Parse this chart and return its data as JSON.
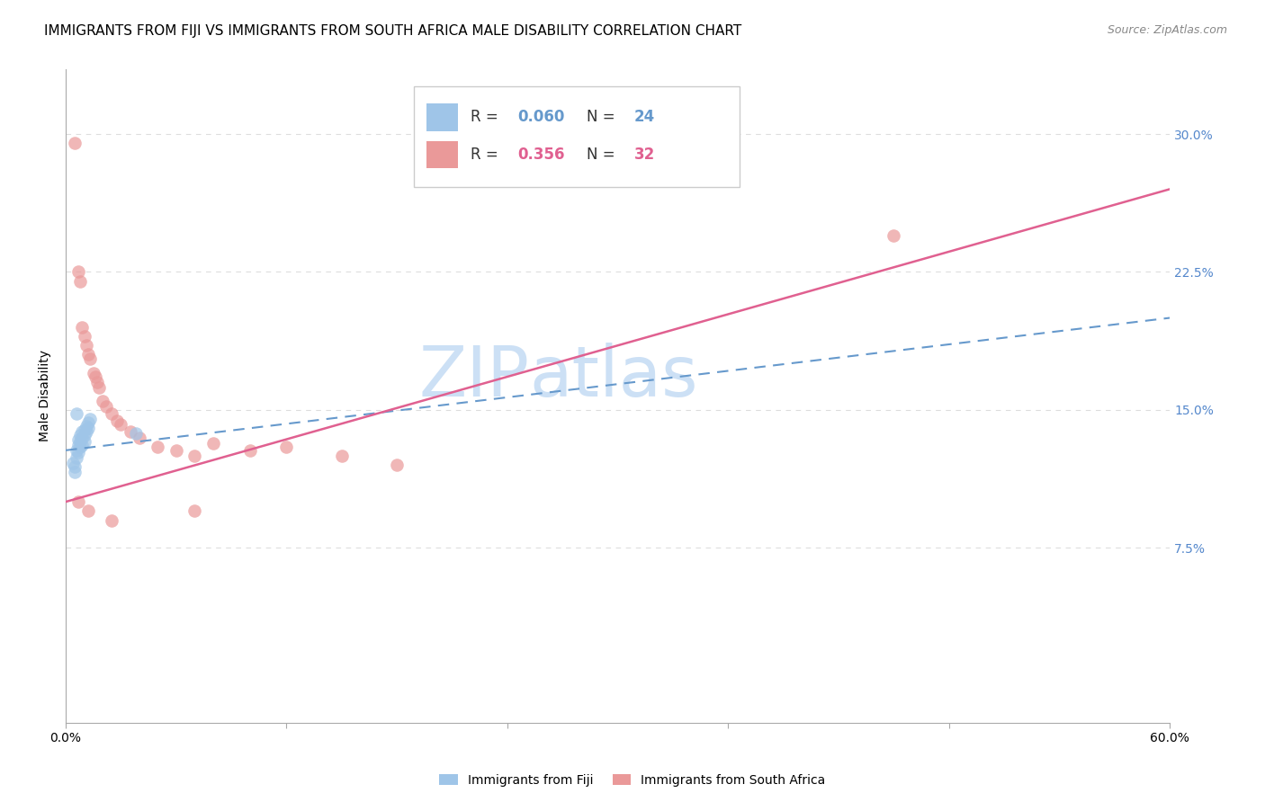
{
  "title": "IMMIGRANTS FROM FIJI VS IMMIGRANTS FROM SOUTH AFRICA MALE DISABILITY CORRELATION CHART",
  "source": "Source: ZipAtlas.com",
  "ylabel": "Male Disability",
  "xlim": [
    0.0,
    0.6
  ],
  "ylim": [
    -0.02,
    0.335
  ],
  "yticks": [
    0.075,
    0.15,
    0.225,
    0.3
  ],
  "ytick_labels": [
    "7.5%",
    "15.0%",
    "22.5%",
    "30.0%"
  ],
  "xticks": [
    0.0,
    0.12,
    0.24,
    0.36,
    0.48,
    0.6
  ],
  "xtick_labels": [
    "0.0%",
    "",
    "",
    "",
    "",
    "60.0%"
  ],
  "fiji_R": 0.06,
  "fiji_N": 24,
  "sa_R": 0.356,
  "sa_N": 32,
  "fiji_color": "#9fc5e8",
  "sa_color": "#ea9999",
  "fiji_line_color": "#6699cc",
  "sa_line_color": "#e06090",
  "fiji_line_style": "--",
  "sa_line_style": "-",
  "fiji_x": [
    0.004,
    0.005,
    0.005,
    0.006,
    0.006,
    0.007,
    0.007,
    0.007,
    0.008,
    0.008,
    0.008,
    0.009,
    0.009,
    0.009,
    0.01,
    0.01,
    0.01,
    0.011,
    0.011,
    0.012,
    0.012,
    0.013,
    0.006,
    0.038
  ],
  "fiji_y": [
    0.121,
    0.119,
    0.116,
    0.128,
    0.124,
    0.134,
    0.131,
    0.127,
    0.136,
    0.133,
    0.13,
    0.138,
    0.135,
    0.131,
    0.139,
    0.136,
    0.133,
    0.141,
    0.138,
    0.143,
    0.14,
    0.145,
    0.148,
    0.137
  ],
  "sa_x": [
    0.005,
    0.007,
    0.008,
    0.009,
    0.01,
    0.011,
    0.012,
    0.013,
    0.015,
    0.016,
    0.017,
    0.018,
    0.02,
    0.022,
    0.025,
    0.028,
    0.03,
    0.035,
    0.04,
    0.05,
    0.06,
    0.07,
    0.08,
    0.1,
    0.12,
    0.15,
    0.18,
    0.007,
    0.012,
    0.025,
    0.45,
    0.07
  ],
  "sa_y": [
    0.295,
    0.225,
    0.22,
    0.195,
    0.19,
    0.185,
    0.18,
    0.178,
    0.17,
    0.168,
    0.165,
    0.162,
    0.155,
    0.152,
    0.148,
    0.144,
    0.142,
    0.138,
    0.135,
    0.13,
    0.128,
    0.125,
    0.132,
    0.128,
    0.13,
    0.125,
    0.12,
    0.1,
    0.095,
    0.09,
    0.245,
    0.095
  ],
  "watermark_line1": "ZIP",
  "watermark_line2": "atlas",
  "watermark_color": "#cce0f5",
  "background_color": "#ffffff",
  "grid_color": "#dddddd",
  "right_yaxis_color": "#5588cc",
  "title_fontsize": 11,
  "label_fontsize": 10,
  "tick_fontsize": 10,
  "legend_fontsize": 11
}
